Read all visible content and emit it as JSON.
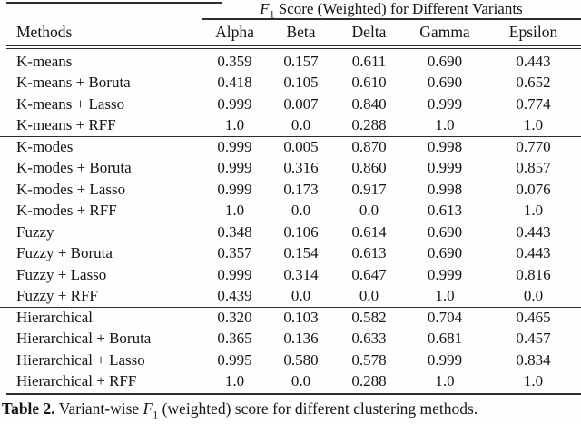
{
  "header": {
    "span_title_f": "F",
    "span_title_sub": "1",
    "span_title_rest": " Score (Weighted) for Different Variants",
    "methods_label": "Methods",
    "columns": [
      "Alpha",
      "Beta",
      "Delta",
      "Gamma",
      "Epsilon"
    ]
  },
  "table": {
    "rows": [
      {
        "method": "K-means",
        "values": [
          "0.359",
          "0.157",
          "0.611",
          "0.690",
          "0.443"
        ]
      },
      {
        "method": "K-means + Boruta",
        "values": [
          "0.418",
          "0.105",
          "0.610",
          "0.690",
          "0.652"
        ]
      },
      {
        "method": "K-means + Lasso",
        "values": [
          "0.999",
          "0.007",
          "0.840",
          "0.999",
          "0.774"
        ]
      },
      {
        "method": "K-means + RFF",
        "values": [
          "1.0",
          "0.0",
          "0.288",
          "1.0",
          "1.0"
        ]
      },
      {
        "method": "K-modes",
        "values": [
          "0.999",
          "0.005",
          "0.870",
          "0.998",
          "0.770"
        ]
      },
      {
        "method": "K-modes + Boruta",
        "values": [
          "0.999",
          "0.316",
          "0.860",
          "0.999",
          "0.857"
        ]
      },
      {
        "method": "K-modes + Lasso",
        "values": [
          "0.999",
          "0.173",
          "0.917",
          "0.998",
          "0.076"
        ]
      },
      {
        "method": "K-modes + RFF",
        "values": [
          "1.0",
          "0.0",
          "0.0",
          "0.613",
          "1.0"
        ]
      },
      {
        "method": "Fuzzy",
        "values": [
          "0.348",
          "0.106",
          "0.614",
          "0.690",
          "0.443"
        ]
      },
      {
        "method": "Fuzzy + Boruta",
        "values": [
          "0.357",
          "0.154",
          "0.613",
          "0.690",
          "0.443"
        ]
      },
      {
        "method": "Fuzzy + Lasso",
        "values": [
          "0.999",
          "0.314",
          "0.647",
          "0.999",
          "0.816"
        ]
      },
      {
        "method": "Fuzzy + RFF",
        "values": [
          "0.439",
          "0.0",
          "0.0",
          "1.0",
          "0.0"
        ]
      },
      {
        "method": "Hierarchical",
        "values": [
          "0.320",
          "0.103",
          "0.582",
          "0.704",
          "0.465"
        ]
      },
      {
        "method": "Hierarchical + Boruta",
        "values": [
          "0.365",
          "0.136",
          "0.633",
          "0.681",
          "0.457"
        ]
      },
      {
        "method": "Hierarchical + Lasso",
        "values": [
          "0.995",
          "0.580",
          "0.578",
          "0.999",
          "0.834"
        ]
      },
      {
        "method": "Hierarchical + RFF",
        "values": [
          "1.0",
          "0.0",
          "0.288",
          "1.0",
          "1.0"
        ]
      }
    ]
  },
  "caption": {
    "label": "Table 2.",
    "text_before_f": " Variant-wise ",
    "f": "F",
    "sub": "1",
    "text_after_f": " (weighted) score for different clustering methods."
  },
  "colors": {
    "rule": "#2e2b28",
    "text": "#171513",
    "background": "#fffefe"
  }
}
